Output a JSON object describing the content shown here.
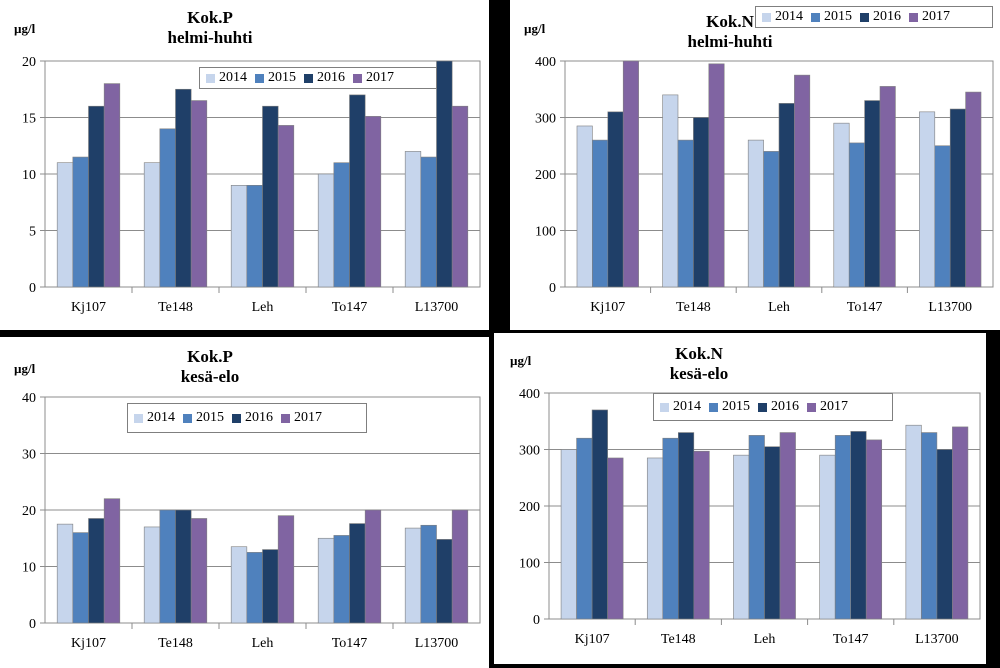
{
  "colors": {
    "2014": "#c6d5ec",
    "2015": "#4f81bd",
    "2016": "#1f3f68",
    "2017": "#8064a2"
  },
  "chart_data": [
    {
      "type": "bar",
      "title": "Kok.P",
      "subtitle": "helmi-huhti",
      "ylabel": "µg/l",
      "ylim": [
        0,
        20
      ],
      "yticks": [
        0,
        5,
        10,
        15,
        20
      ],
      "categories": [
        "Kj107",
        "Te148",
        "Leh",
        "To147",
        "L13700"
      ],
      "series": [
        {
          "name": "2014",
          "values": [
            11,
            11,
            9,
            10,
            12
          ]
        },
        {
          "name": "2015",
          "values": [
            11.5,
            14,
            9,
            11,
            11.5
          ]
        },
        {
          "name": "2016",
          "values": [
            16,
            17.5,
            16,
            17,
            20
          ]
        },
        {
          "name": "2017",
          "values": [
            18,
            16.5,
            14.3,
            15.1,
            16
          ]
        }
      ]
    },
    {
      "type": "bar",
      "title": "Kok.N",
      "subtitle": "helmi-huhti",
      "ylabel": "µg/l",
      "ylim": [
        0,
        400
      ],
      "yticks": [
        0,
        100,
        200,
        300,
        400
      ],
      "categories": [
        "Kj107",
        "Te148",
        "Leh",
        "To147",
        "L13700"
      ],
      "series": [
        {
          "name": "2014",
          "values": [
            285,
            340,
            260,
            290,
            310
          ]
        },
        {
          "name": "2015",
          "values": [
            260,
            260,
            240,
            255,
            250
          ]
        },
        {
          "name": "2016",
          "values": [
            310,
            300,
            325,
            330,
            315
          ]
        },
        {
          "name": "2017",
          "values": [
            400,
            395,
            375,
            355,
            345
          ]
        }
      ]
    },
    {
      "type": "bar",
      "title": "Kok.P",
      "subtitle": "kesä-elo",
      "ylabel": "µg/l",
      "ylim": [
        0,
        40
      ],
      "yticks": [
        0,
        10,
        20,
        30,
        40
      ],
      "categories": [
        "Kj107",
        "Te148",
        "Leh",
        "To147",
        "L13700"
      ],
      "series": [
        {
          "name": "2014",
          "values": [
            17.5,
            17,
            13.5,
            15,
            16.8
          ]
        },
        {
          "name": "2015",
          "values": [
            16,
            20,
            12.5,
            15.5,
            17.3
          ]
        },
        {
          "name": "2016",
          "values": [
            18.5,
            20,
            13,
            17.6,
            14.8
          ]
        },
        {
          "name": "2017",
          "values": [
            22,
            18.5,
            19,
            20,
            20
          ]
        }
      ]
    },
    {
      "type": "bar",
      "title": "Kok.N",
      "subtitle": "kesä-elo",
      "ylabel": "µg/l",
      "ylim": [
        0,
        400
      ],
      "yticks": [
        0,
        100,
        200,
        300,
        400
      ],
      "categories": [
        "Kj107",
        "Te148",
        "Leh",
        "To147",
        "L13700"
      ],
      "series": [
        {
          "name": "2014",
          "values": [
            300,
            285,
            290,
            290,
            343
          ]
        },
        {
          "name": "2015",
          "values": [
            320,
            320,
            325,
            325,
            330
          ]
        },
        {
          "name": "2016",
          "values": [
            370,
            330,
            305,
            332,
            300
          ]
        },
        {
          "name": "2017",
          "values": [
            285,
            297,
            330,
            317,
            340
          ]
        }
      ]
    }
  ]
}
